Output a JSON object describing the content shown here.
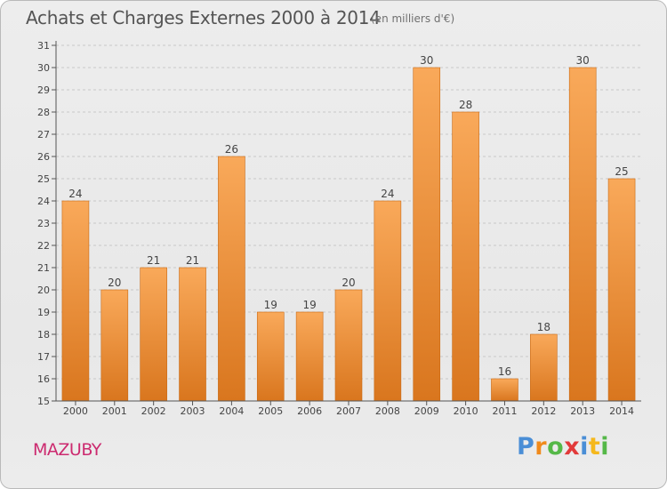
{
  "header": {
    "title": "Achats et Charges Externes 2000 à 2014",
    "subtitle": "(en milliers d'€)"
  },
  "footer": {
    "commune": "MAZUBY",
    "logo": {
      "text": "Proxiti",
      "letters": [
        {
          "ch": "P",
          "color": "#4a8ed6"
        },
        {
          "ch": "r",
          "color": "#f08a1c"
        },
        {
          "ch": "o",
          "color": "#55b848"
        },
        {
          "ch": "x",
          "color": "#e23a3a"
        },
        {
          "ch": "i",
          "color": "#4a8ed6"
        },
        {
          "ch": "t",
          "color": "#f5b81c"
        },
        {
          "ch": "i",
          "color": "#55b848"
        }
      ]
    }
  },
  "colors": {
    "bar_top": "#f9a95a",
    "bar_bottom": "#d9761e",
    "axis": "#555555",
    "grid": "#c8c8c8"
  },
  "chart_data": {
    "type": "bar",
    "title": "Achats et Charges Externes 2000 à 2014",
    "subtitle": "(en milliers d'€)",
    "categories": [
      "2000",
      "2001",
      "2002",
      "2003",
      "2004",
      "2005",
      "2006",
      "2007",
      "2008",
      "2009",
      "2010",
      "2011",
      "2012",
      "2013",
      "2014"
    ],
    "values": [
      24,
      20,
      21,
      21,
      26,
      19,
      19,
      20,
      24,
      30,
      28,
      16,
      18,
      30,
      25
    ],
    "xlabel": "",
    "ylabel": "",
    "ylim": [
      15,
      31
    ],
    "yticks": [
      15,
      16,
      17,
      18,
      19,
      20,
      21,
      22,
      23,
      24,
      25,
      26,
      27,
      28,
      29,
      30,
      31
    ],
    "grid": "horizontal dashed",
    "data_labels": true
  }
}
